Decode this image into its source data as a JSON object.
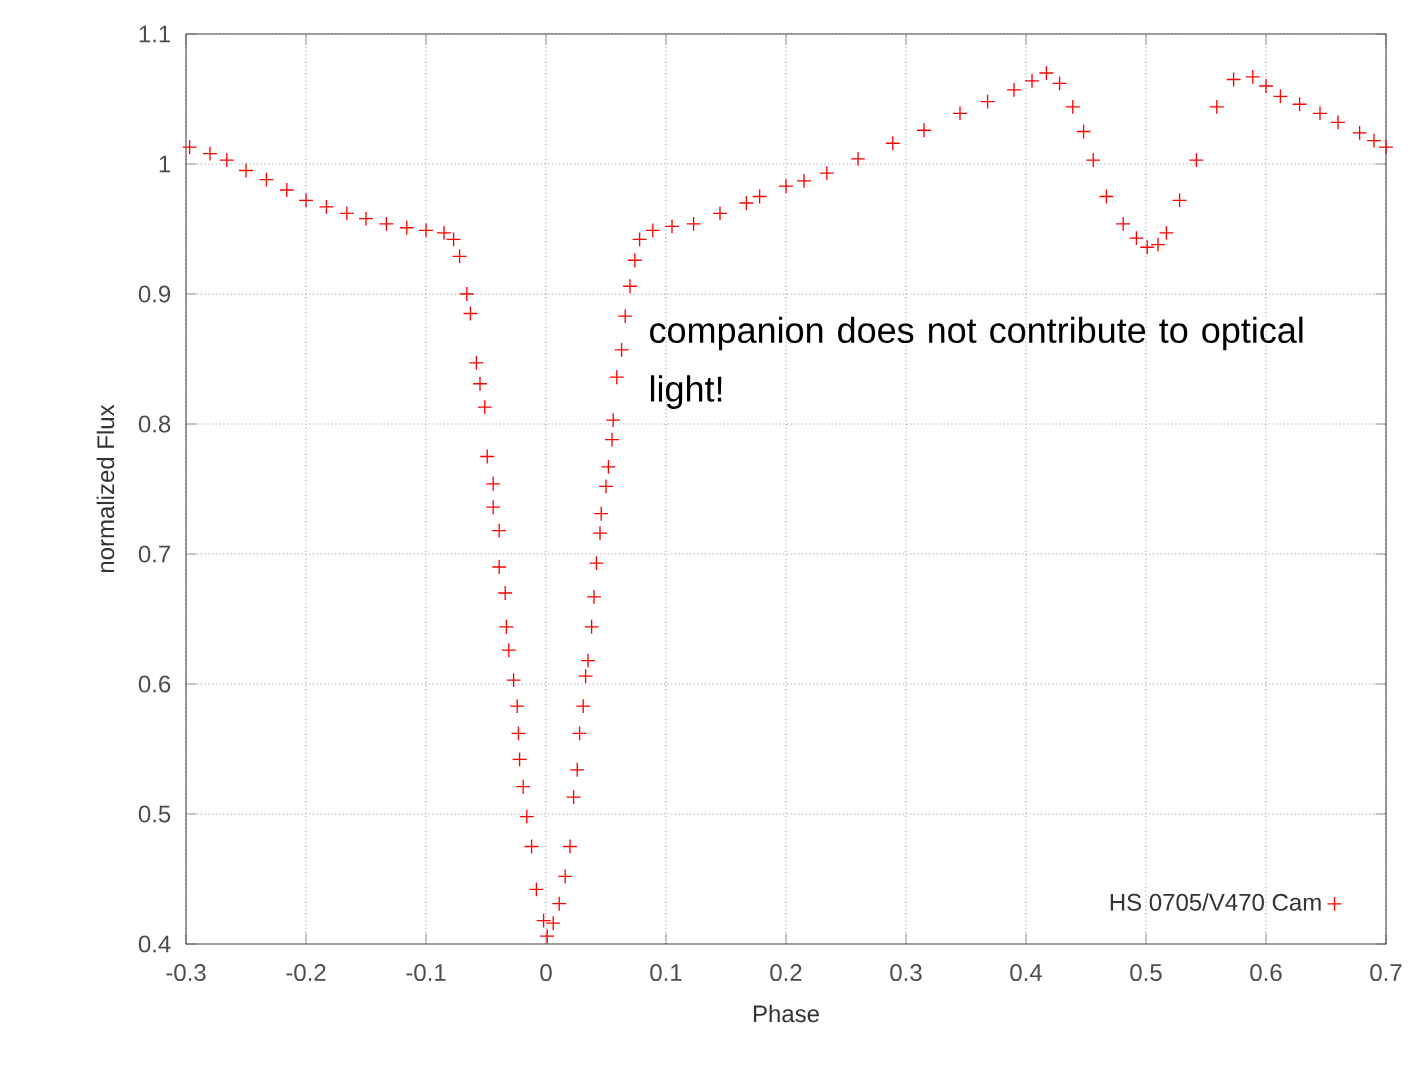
{
  "chart_data": {
    "type": "scatter",
    "xlabel": "Phase",
    "ylabel": "normalized Flux",
    "annotations": [
      "companion does not contribute to optical light!"
    ],
    "xlim": [
      -0.3,
      0.7
    ],
    "ylim": [
      0.4,
      1.1
    ],
    "xticks": [
      -0.3,
      -0.2,
      -0.1,
      0,
      0.1,
      0.2,
      0.3,
      0.4,
      0.5,
      0.6,
      0.7
    ],
    "yticks": [
      0.4,
      0.5,
      0.6,
      0.7,
      0.8,
      0.9,
      1,
      1.1
    ],
    "grid": true,
    "legend": "bottom right",
    "marker": "cross",
    "series": [
      {
        "name": "HS 0705/V470 Cam",
        "color": "#ff0000",
        "x": [
          -0.297,
          -0.28,
          -0.266,
          -0.25,
          -0.233,
          -0.216,
          -0.2,
          -0.183,
          -0.166,
          -0.15,
          -0.133,
          -0.116,
          -0.1,
          -0.085,
          -0.077,
          -0.072,
          -0.066,
          -0.063,
          -0.058,
          -0.055,
          -0.051,
          -0.049,
          -0.044,
          -0.044,
          -0.039,
          -0.039,
          -0.034,
          -0.033,
          -0.031,
          -0.027,
          -0.024,
          -0.023,
          -0.022,
          -0.019,
          -0.016,
          -0.012,
          -0.008,
          -0.002,
          0.001,
          0.006,
          0.011,
          0.016,
          0.02,
          0.023,
          0.026,
          0.028,
          0.031,
          0.033,
          0.035,
          0.038,
          0.04,
          0.042,
          0.045,
          0.046,
          0.05,
          0.052,
          0.055,
          0.056,
          0.059,
          0.063,
          0.066,
          0.07,
          0.074,
          0.078,
          0.089,
          0.105,
          0.123,
          0.145,
          0.167,
          0.178,
          0.2,
          0.215,
          0.234,
          0.26,
          0.289,
          0.315,
          0.345,
          0.368,
          0.39,
          0.405,
          0.417,
          0.428,
          0.439,
          0.448,
          0.456,
          0.467,
          0.481,
          0.492,
          0.501,
          0.51,
          0.517,
          0.528,
          0.542,
          0.559,
          0.573,
          0.589,
          0.6,
          0.612,
          0.628,
          0.645,
          0.66,
          0.678,
          0.69,
          0.7
        ],
        "values": [
          1.013,
          1.008,
          1.003,
          0.995,
          0.988,
          0.98,
          0.972,
          0.967,
          0.962,
          0.958,
          0.954,
          0.951,
          0.949,
          0.947,
          0.942,
          0.929,
          0.9,
          0.885,
          0.847,
          0.831,
          0.813,
          0.775,
          0.754,
          0.736,
          0.718,
          0.69,
          0.67,
          0.644,
          0.626,
          0.603,
          0.583,
          0.562,
          0.542,
          0.521,
          0.498,
          0.475,
          0.442,
          0.418,
          0.406,
          0.416,
          0.431,
          0.452,
          0.475,
          0.513,
          0.534,
          0.562,
          0.583,
          0.606,
          0.618,
          0.644,
          0.667,
          0.693,
          0.716,
          0.731,
          0.752,
          0.767,
          0.788,
          0.803,
          0.836,
          0.857,
          0.883,
          0.906,
          0.926,
          0.942,
          0.949,
          0.952,
          0.954,
          0.962,
          0.97,
          0.975,
          0.983,
          0.987,
          0.993,
          1.004,
          1.016,
          1.026,
          1.039,
          1.048,
          1.057,
          1.064,
          1.07,
          1.062,
          1.044,
          1.025,
          1.003,
          0.975,
          0.954,
          0.943,
          0.936,
          0.938,
          0.947,
          0.972,
          1.003,
          1.044,
          1.065,
          1.067,
          1.06,
          1.052,
          1.046,
          1.039,
          1.032,
          1.024,
          1.018,
          1.013
        ]
      }
    ]
  }
}
